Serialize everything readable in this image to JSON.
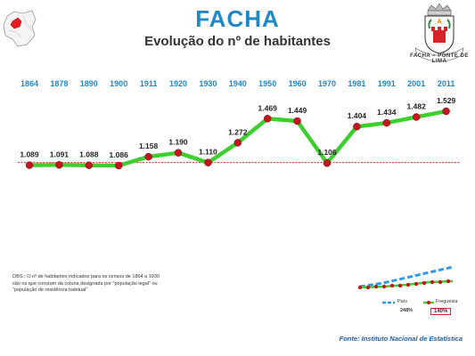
{
  "title": "FACHA",
  "subtitle": "Evolução do nº de habitantes",
  "crest_text": "FACHA – PONTE DE LIMA",
  "note": "OBS.: O nº de habitantes indicados para os censos de 1864 a 1930 são os que constam da coluna designada por \"população legal\" ou \"população de residência habitual\"",
  "source": "Fonte: Instituto Nacional de Estatística",
  "colors": {
    "title": "#1f88c7",
    "year_labels": "#1f88c7",
    "series_line": "#3ccf2e",
    "series_marker": "#c0181e",
    "reference_line": "#e31b23",
    "pais_series": "#2e9be6",
    "source_text": "#1f5fa8"
  },
  "chart_data": {
    "type": "line",
    "title": "Evolução do nº de habitantes",
    "categories": [
      "1864",
      "1878",
      "1890",
      "1900",
      "1911",
      "1920",
      "1930",
      "1940",
      "1950",
      "1960",
      "1970",
      "1981",
      "1991",
      "2001",
      "2011"
    ],
    "value_labels": [
      "1.089",
      "1.091",
      "1.088",
      "1.086",
      "1.158",
      "1.190",
      "1.110",
      "1.272",
      "1.469",
      "1.449",
      "1.106",
      "1.404",
      "1.434",
      "1.482",
      "1.529"
    ],
    "series": [
      {
        "values": [
          1089,
          1091,
          1088,
          1086,
          1158,
          1190,
          1110,
          1272,
          1469,
          1449,
          1106,
          1404,
          1434,
          1482,
          1529
        ]
      }
    ],
    "reference_value": 1089,
    "grid": false,
    "legend": false
  },
  "mini_chart": {
    "type": "line",
    "legend_position": "bottom",
    "series": [
      {
        "name": "País",
        "change_label": "248%"
      },
      {
        "name": "Freguesia",
        "change_label": "140%"
      }
    ]
  }
}
